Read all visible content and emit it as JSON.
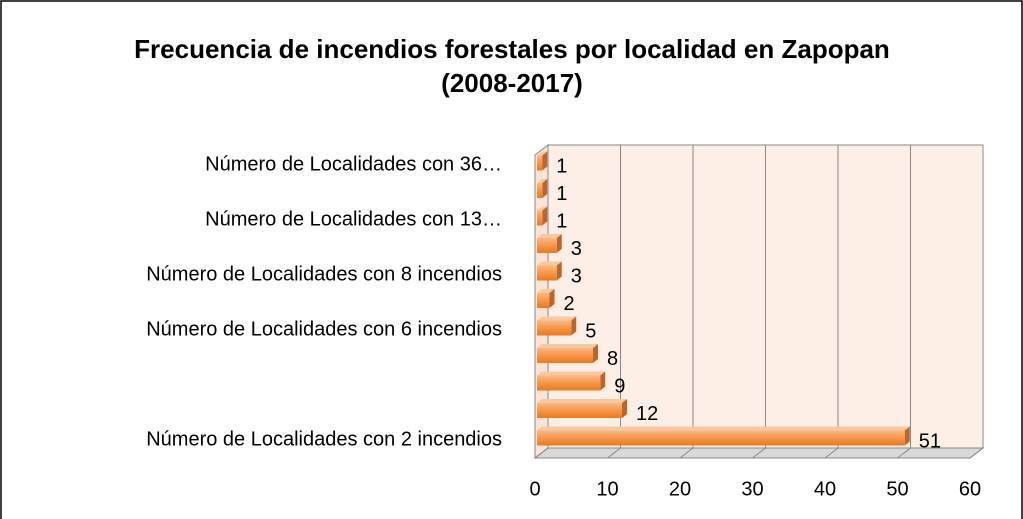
{
  "chart_data": {
    "type": "bar",
    "orientation": "horizontal",
    "title": "Frecuencia de incendios forestales por localidad en Zapopan (2008-2017)",
    "categories": [
      "Número de Localidades con 2 incendios",
      null,
      null,
      null,
      "Número de Localidades con 6 incendios",
      null,
      "Número de Localidades con 8 incendios",
      null,
      "Número de Localidades con 13…",
      null,
      "Número de Localidades con 36…"
    ],
    "values": [
      51,
      12,
      9,
      8,
      5,
      2,
      3,
      3,
      1,
      1,
      1
    ],
    "color": "#f79646",
    "xlim": [
      0,
      60
    ],
    "xticks": [
      0,
      10,
      20,
      30,
      40,
      50,
      60
    ],
    "grid": true
  }
}
